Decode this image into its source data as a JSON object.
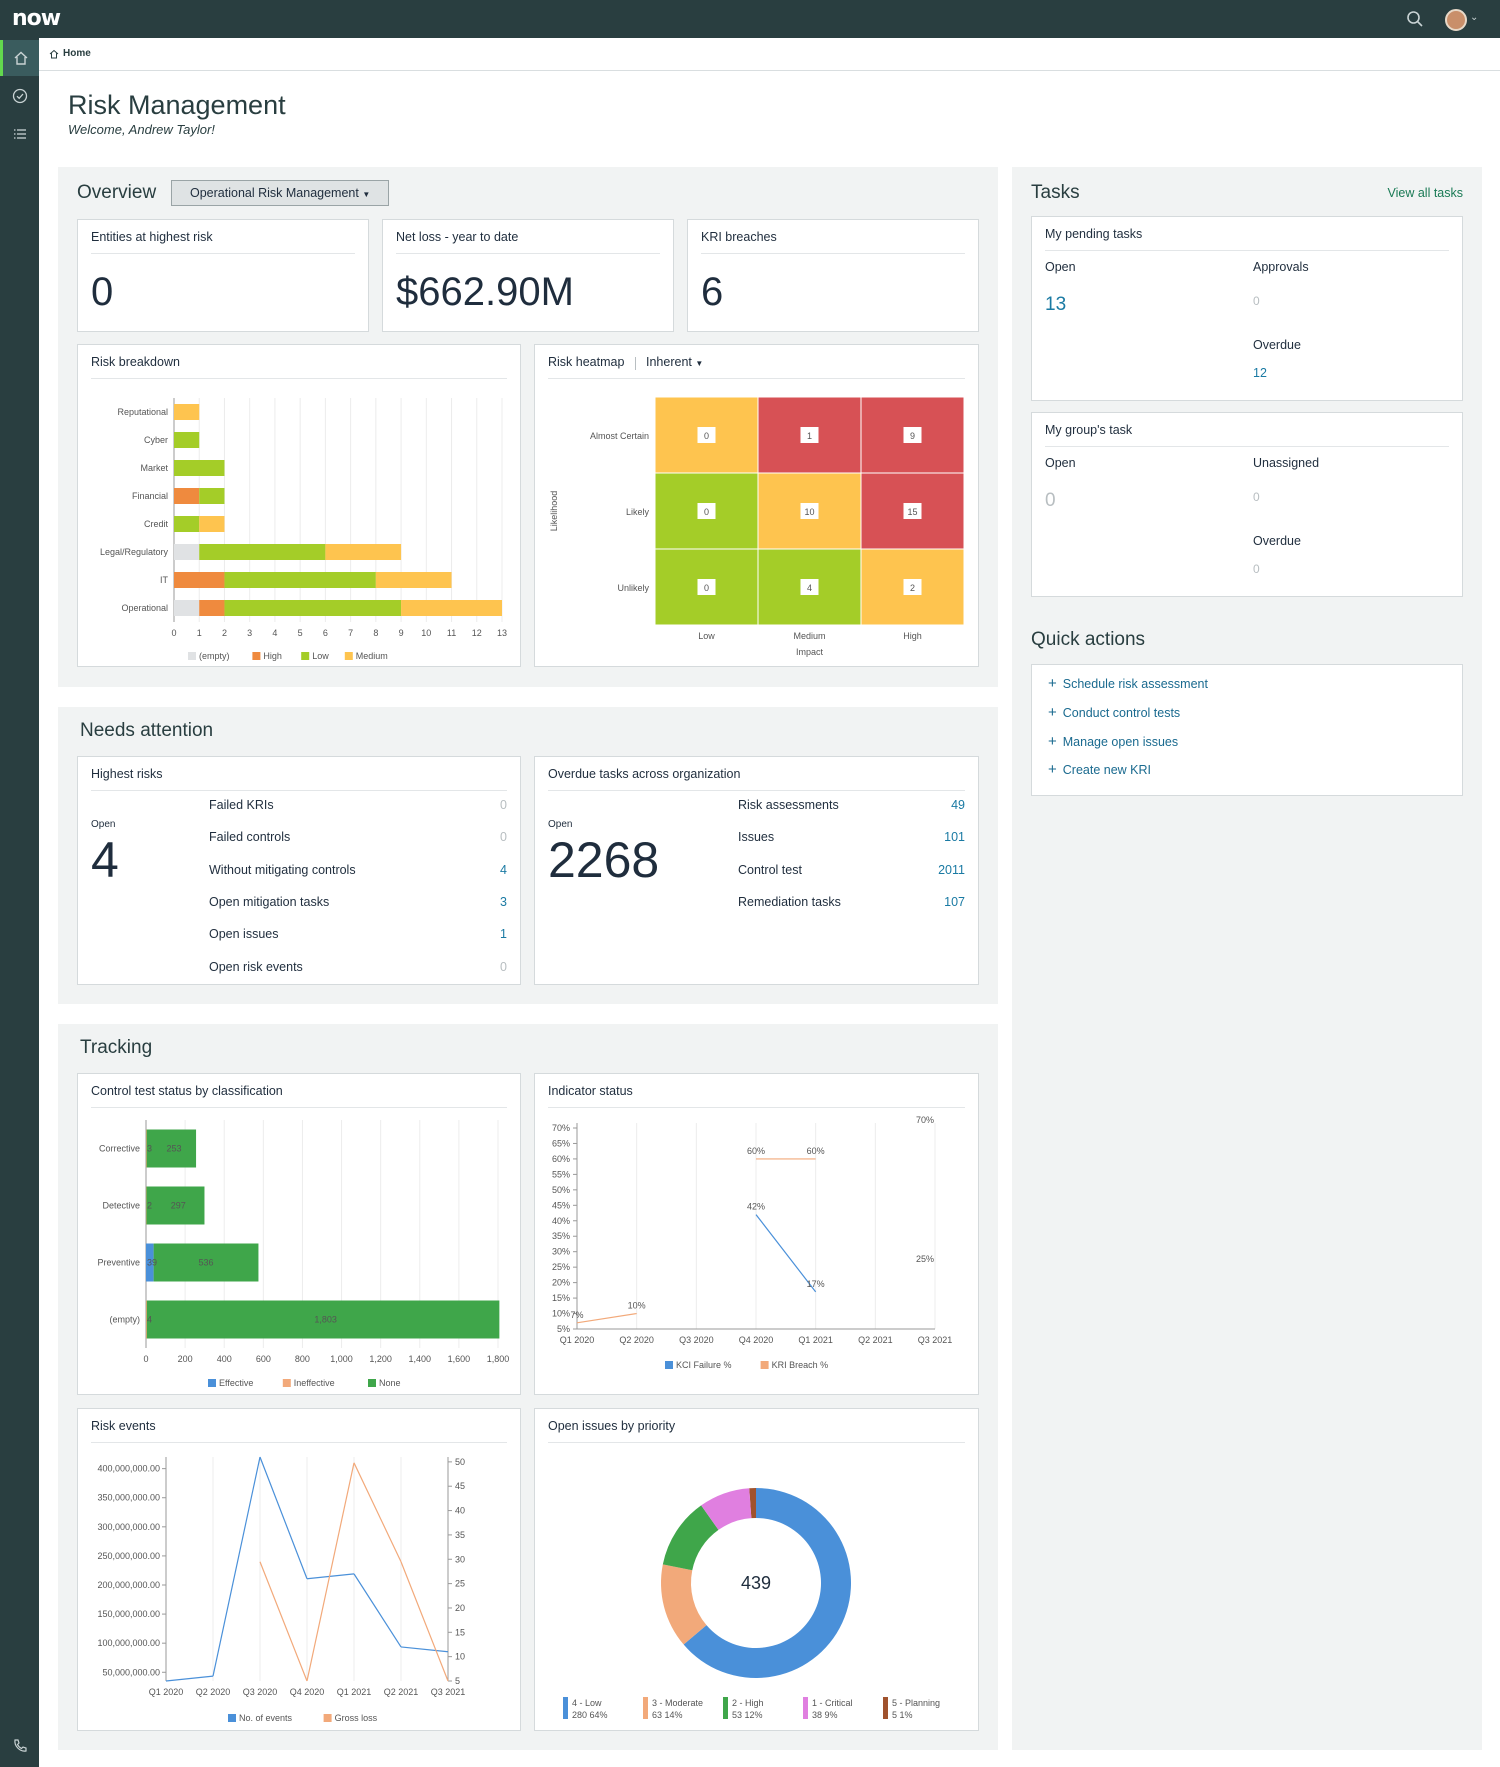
{
  "app": {
    "logo": "now"
  },
  "breadcrumb": {
    "label": "Home"
  },
  "page": {
    "title": "Risk Management",
    "welcome": "Welcome, Andrew Taylor!"
  },
  "overview": {
    "title": "Overview",
    "dropdown": "Operational Risk Management",
    "kpis": [
      {
        "label": "Entities at highest risk",
        "value": "0"
      },
      {
        "label": "Net loss - year to date",
        "value": "$662.90M"
      },
      {
        "label": "KRI breaches",
        "value": "6"
      }
    ]
  },
  "risk_breakdown": {
    "title": "Risk breakdown"
  },
  "risk_heatmap": {
    "title": "Risk heatmap",
    "dropdown": "Inherent",
    "rows": [
      "Almost Certain",
      "Likely",
      "Unlikely"
    ],
    "cols": [
      "Low",
      "Medium",
      "High"
    ],
    "ylabel": "Likelihood",
    "xlabel": "Impact",
    "values": [
      [
        "0",
        "1",
        "9"
      ],
      [
        "0",
        "10",
        "15"
      ],
      [
        "0",
        "4",
        "2"
      ]
    ],
    "colors": [
      [
        "#fec44f",
        "#d75155",
        "#d75155"
      ],
      [
        "#a4cd28",
        "#fec44f",
        "#d75155"
      ],
      [
        "#a4cd28",
        "#a4cd28",
        "#fec44f"
      ]
    ]
  },
  "tasks": {
    "title": "Tasks",
    "view_all": "View all tasks",
    "pending": {
      "title": "My pending tasks",
      "open_label": "Open",
      "open_value": "13",
      "approvals_label": "Approvals",
      "approvals_value": "0",
      "overdue_label": "Overdue",
      "overdue_value": "12"
    },
    "group": {
      "title": "My group's task",
      "open_label": "Open",
      "open_value": "0",
      "unassigned_label": "Unassigned",
      "unassigned_value": "0",
      "overdue_label": "Overdue",
      "overdue_value": "0"
    }
  },
  "quick_actions": {
    "title": "Quick actions",
    "items": [
      "Schedule risk assessment",
      "Conduct control tests",
      "Manage open issues",
      "Create new KRI"
    ]
  },
  "needs_attention": {
    "title": "Needs attention",
    "highest": {
      "title": "Highest risks",
      "open_label": "Open",
      "open_value": "4",
      "rows": [
        {
          "label": "Failed KRIs",
          "value": "0"
        },
        {
          "label": "Failed controls",
          "value": "0"
        },
        {
          "label": "Without mitigating controls",
          "value": "4"
        },
        {
          "label": "Open mitigation tasks",
          "value": "3"
        },
        {
          "label": "Open issues",
          "value": "1"
        },
        {
          "label": "Open risk events",
          "value": "0"
        }
      ]
    },
    "overdue": {
      "title": "Overdue tasks across organization",
      "open_label": "Open",
      "open_value": "2268",
      "rows": [
        {
          "label": "Risk assessments",
          "value": "49"
        },
        {
          "label": "Issues",
          "value": "101"
        },
        {
          "label": "Control test",
          "value": "2011"
        },
        {
          "label": "Remediation tasks",
          "value": "107"
        }
      ]
    }
  },
  "tracking": {
    "title": "Tracking",
    "control_test_title": "Control test status by classification",
    "indicator_title": "Indicator status",
    "risk_events_title": "Risk events",
    "open_issues_title": "Open issues by priority",
    "donut_total": "439"
  },
  "chart_data": [
    {
      "id": "risk_breakdown",
      "type": "bar",
      "orientation": "horizontal",
      "stacked": true,
      "categories": [
        "Reputational",
        "Cyber",
        "Market",
        "Financial",
        "Credit",
        "Legal/Regulatory",
        "IT",
        "Operational"
      ],
      "series": [
        {
          "name": "(empty)",
          "color": "#e0e2e4",
          "values": [
            0,
            0,
            0,
            0,
            0,
            1,
            0,
            1
          ]
        },
        {
          "name": "High",
          "color": "#ef8a3e",
          "values": [
            0,
            0,
            0,
            1,
            0,
            0,
            2,
            1
          ]
        },
        {
          "name": "Low",
          "color": "#a4cd28",
          "values": [
            0,
            1,
            2,
            1,
            1,
            5,
            6,
            7
          ]
        },
        {
          "name": "Medium",
          "color": "#fec44f",
          "values": [
            1,
            0,
            0,
            0,
            1,
            3,
            3,
            4
          ]
        }
      ],
      "xticks": [
        "0",
        "1",
        "2",
        "3",
        "4",
        "5",
        "6",
        "7",
        "8",
        "9",
        "10",
        "11",
        "12",
        "13"
      ],
      "xlim": [
        0,
        13
      ],
      "grid": true,
      "legend": "bottom"
    },
    {
      "id": "control_test",
      "type": "bar",
      "orientation": "horizontal",
      "stacked": true,
      "categories": [
        "Corrective",
        "Detective",
        "Preventive",
        "(empty)"
      ],
      "series": [
        {
          "name": "Effective",
          "color": "#4a90d9",
          "values": [
            0,
            0,
            39,
            0
          ]
        },
        {
          "name": "Ineffective",
          "color": "#f2a97a",
          "values": [
            3,
            2,
            0,
            4
          ]
        },
        {
          "name": "None",
          "color": "#3fa64a",
          "values": [
            253,
            297,
            536,
            1803
          ]
        }
      ],
      "labels": [
        [
          "3",
          "253"
        ],
        [
          "2",
          "297"
        ],
        [
          "39",
          "536"
        ],
        [
          "4",
          "1,803"
        ]
      ],
      "xticks": [
        "0",
        "200",
        "400",
        "600",
        "800",
        "1,000",
        "1,200",
        "1,400",
        "1,600",
        "1,800"
      ],
      "xlim": [
        0,
        1800
      ],
      "grid": true,
      "legend": "bottom"
    },
    {
      "id": "indicator_status",
      "type": "line",
      "x": [
        "Q1 2020",
        "Q2 2020",
        "Q3 2020",
        "Q4 2020",
        "Q1 2021",
        "Q2 2021",
        "Q3 2021"
      ],
      "yticks": [
        "5%",
        "10%",
        "15%",
        "20%",
        "25%",
        "30%",
        "35%",
        "40%",
        "45%",
        "50%",
        "55%",
        "60%",
        "65%",
        "70%"
      ],
      "ylim": [
        5,
        70
      ],
      "series": [
        {
          "name": "KCI Failure %",
          "color": "#4a90d9",
          "points": [
            [
              3,
              42
            ],
            [
              4,
              17
            ]
          ]
        },
        {
          "name": "KRI Breach %",
          "color": "#f2a97a",
          "points": [
            [
              0,
              7
            ],
            [
              1,
              10
            ],
            [
              3,
              60
            ],
            [
              4,
              60
            ]
          ]
        }
      ],
      "labels": [
        {
          "x": 0,
          "y": 7,
          "text": "7%"
        },
        {
          "x": 1,
          "y": 10,
          "text": "10%"
        },
        {
          "x": 3,
          "y": 60,
          "text": "60%"
        },
        {
          "x": 4,
          "y": 60,
          "text": "60%"
        },
        {
          "x": 3,
          "y": 42,
          "text": "42%"
        },
        {
          "x": 4,
          "y": 17,
          "text": "17%"
        },
        {
          "x": 6,
          "y": 70,
          "text": "70%"
        },
        {
          "x": 6,
          "y": 25,
          "text": "25%"
        }
      ],
      "legend": "bottom"
    },
    {
      "id": "risk_events",
      "type": "line",
      "x": [
        "Q1 2020",
        "Q2 2020",
        "Q3 2020",
        "Q4 2020",
        "Q1 2021",
        "Q2 2021",
        "Q3 2021"
      ],
      "y_left_ticks": [
        "50,000,000.00",
        "100,000,000.00",
        "150,000,000.00",
        "200,000,000.00",
        "250,000,000.00",
        "300,000,000.00",
        "350,000,000.00",
        "400,000,000.00"
      ],
      "y_right_ticks": [
        "5",
        "10",
        "15",
        "20",
        "25",
        "30",
        "35",
        "40",
        "45",
        "50"
      ],
      "ylim_left": [
        35000000,
        420000000
      ],
      "ylim_right": [
        5,
        51
      ],
      "series": [
        {
          "name": "No. of events",
          "axis": "right",
          "color": "#4a90d9",
          "values": [
            5,
            6,
            51,
            26,
            27,
            12,
            11
          ]
        },
        {
          "name": "Gross loss",
          "axis": "left",
          "color": "#f2a97a",
          "values": [
            null,
            null,
            240000000,
            35000000,
            410000000,
            240000000,
            35000000
          ]
        }
      ],
      "legend": "bottom"
    },
    {
      "id": "open_issues",
      "type": "pie",
      "donut": true,
      "total": "439",
      "slices": [
        {
          "name": "4 - Low",
          "value": 280,
          "percent": "64%",
          "color": "#4a90d9"
        },
        {
          "name": "3 - Moderate",
          "value": 63,
          "percent": "14%",
          "color": "#f2a97a"
        },
        {
          "name": "2 - High",
          "value": 53,
          "percent": "12%",
          "color": "#3fa64a"
        },
        {
          "name": "1 - Critical",
          "value": 38,
          "percent": "9%",
          "color": "#e07fe0"
        },
        {
          "name": "5 - Planning",
          "value": 5,
          "percent": "1%",
          "color": "#a0522d"
        }
      ],
      "legend": "bottom"
    }
  ]
}
